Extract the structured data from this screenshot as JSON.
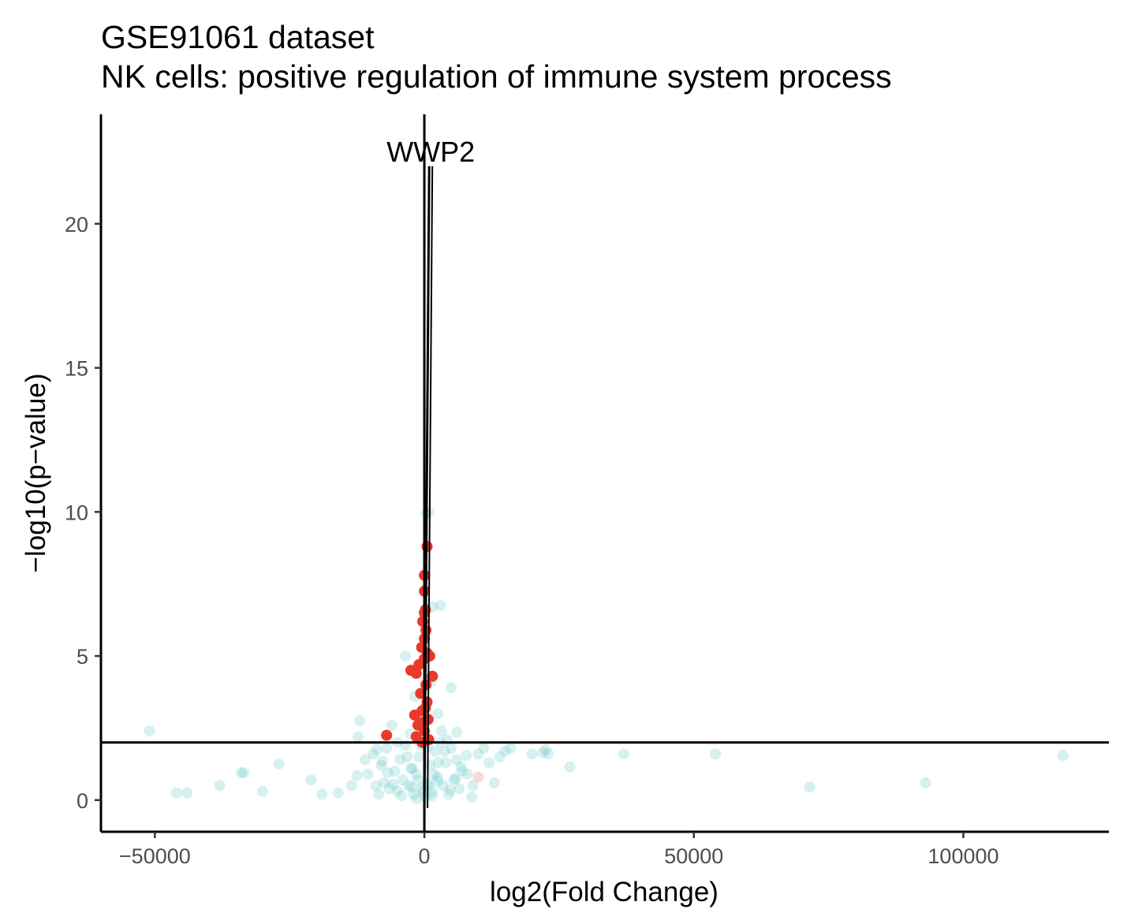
{
  "chart_data": {
    "type": "scatter",
    "title": "GSE91061 dataset",
    "subtitle": "NK cells: positive regulation of immune system process",
    "xlabel": "log2(Fold Change)",
    "ylabel": "−log10(p−value)",
    "xlim": [
      -60000,
      127000
    ],
    "ylim": [
      -1.1,
      23.8
    ],
    "x_ticks": [
      -50000,
      0,
      50000,
      100000
    ],
    "x_tick_labels": [
      "−50000",
      "0",
      "50000",
      "100000"
    ],
    "y_ticks": [
      0,
      5,
      10,
      15,
      20
    ],
    "y_tick_labels": [
      "0",
      "5",
      "10",
      "15",
      "20"
    ],
    "grid": false,
    "reference_lines": {
      "vertical_x": 0,
      "horizontal_y": 2
    },
    "colors": {
      "nonsignificant": "#5ec4c4",
      "significant": "#e8392a",
      "faded_red": "#f08080"
    },
    "annotation": {
      "label": "WWP2",
      "x": 900,
      "y": 22.0
    },
    "series": [
      {
        "role": "nonsignificant",
        "points": [
          [
            -51000,
            2.4
          ],
          [
            -46000,
            0.25
          ],
          [
            -44000,
            0.25
          ],
          [
            -38000,
            0.5
          ],
          [
            -34000,
            0.95
          ],
          [
            -33500,
            0.95
          ],
          [
            -27000,
            1.25
          ],
          [
            -30000,
            0.3
          ],
          [
            -21000,
            0.7
          ],
          [
            -19000,
            0.2
          ],
          [
            -16000,
            0.25
          ],
          [
            -13500,
            0.5
          ],
          [
            -12500,
            0.85
          ],
          [
            -12000,
            2.75
          ],
          [
            -12300,
            2.2
          ],
          [
            -11000,
            1.4
          ],
          [
            -10500,
            0.9
          ],
          [
            -9500,
            1.6
          ],
          [
            -9000,
            0.5
          ],
          [
            -8500,
            0.2
          ],
          [
            -8000,
            1.2
          ],
          [
            -7500,
            0.6
          ],
          [
            -7000,
            1.8
          ],
          [
            -6500,
            0.4
          ],
          [
            -6000,
            2.6
          ],
          [
            -5500,
            1.0
          ],
          [
            -5000,
            0.3
          ],
          [
            -4500,
            1.4
          ],
          [
            -4000,
            0.7
          ],
          [
            -3500,
            1.9
          ],
          [
            -3000,
            0.5
          ],
          [
            -2500,
            1.1
          ],
          [
            -2000,
            0.2
          ],
          [
            -1500,
            0.9
          ],
          [
            -1000,
            1.5
          ],
          [
            -500,
            0.4
          ],
          [
            500,
            0.6
          ],
          [
            1000,
            1.2
          ],
          [
            1500,
            0.3
          ],
          [
            2000,
            1.7
          ],
          [
            2500,
            0.8
          ],
          [
            3000,
            2.0
          ],
          [
            3500,
            0.5
          ],
          [
            4000,
            1.3
          ],
          [
            4500,
            0.2
          ],
          [
            5000,
            1.8
          ],
          [
            5500,
            0.7
          ],
          [
            6000,
            1.4
          ],
          [
            6500,
            0.4
          ],
          [
            7000,
            1.0
          ],
          [
            8000,
            0.9
          ],
          [
            9000,
            0.5
          ],
          [
            10000,
            1.6
          ],
          [
            11000,
            1.8
          ],
          [
            12000,
            1.3
          ],
          [
            13000,
            0.6
          ],
          [
            14000,
            1.5
          ],
          [
            15000,
            1.7
          ],
          [
            16000,
            1.8
          ],
          [
            20000,
            1.6
          ],
          [
            22000,
            1.65
          ],
          [
            22500,
            1.75
          ],
          [
            23000,
            1.6
          ],
          [
            27000,
            1.15
          ],
          [
            37000,
            1.6
          ],
          [
            54000,
            1.6
          ],
          [
            71500,
            0.45
          ],
          [
            93000,
            0.6
          ],
          [
            118500,
            1.55
          ],
          [
            300,
            9.95
          ],
          [
            800,
            10.0
          ],
          [
            1500,
            6.7
          ],
          [
            3000,
            6.75
          ],
          [
            -3500,
            5.0
          ],
          [
            1200,
            4.1
          ],
          [
            5000,
            3.9
          ],
          [
            -1800,
            3.6
          ],
          [
            2500,
            3.0
          ],
          [
            -800,
            2.8
          ],
          [
            3200,
            2.4
          ],
          [
            -2600,
            2.3
          ],
          [
            6000,
            2.35
          ],
          [
            -5000,
            2.0
          ],
          [
            4200,
            2.1
          ],
          [
            200,
            0.1
          ],
          [
            -200,
            0.3
          ],
          [
            700,
            0.5
          ],
          [
            -1200,
            0.7
          ],
          [
            1800,
            0.9
          ],
          [
            -2200,
            1.1
          ],
          [
            2600,
            1.3
          ],
          [
            -3200,
            1.5
          ],
          [
            3800,
            1.7
          ],
          [
            -4200,
            0.15
          ],
          [
            4800,
            0.35
          ],
          [
            -5800,
            0.55
          ],
          [
            5800,
            0.75
          ],
          [
            -6800,
            0.95
          ],
          [
            6800,
            1.15
          ],
          [
            -7800,
            1.35
          ],
          [
            7800,
            1.55
          ],
          [
            -8800,
            1.75
          ],
          [
            8800,
            0.1
          ],
          [
            -600,
            1.9
          ],
          [
            600,
            1.85
          ],
          [
            -1400,
            0.05
          ],
          [
            1400,
            0.15
          ],
          [
            -2400,
            0.45
          ],
          [
            2400,
            0.65
          ]
        ]
      },
      {
        "role": "significant",
        "points": [
          [
            500,
            8.8
          ],
          [
            0,
            7.8
          ],
          [
            0,
            7.25
          ],
          [
            200,
            6.6
          ],
          [
            0,
            6.5
          ],
          [
            -300,
            6.2
          ],
          [
            300,
            5.9
          ],
          [
            0,
            5.6
          ],
          [
            -500,
            5.3
          ],
          [
            500,
            5.1
          ],
          [
            0,
            4.9
          ],
          [
            -2500,
            4.5
          ],
          [
            -1500,
            4.4
          ],
          [
            1500,
            4.3
          ],
          [
            300,
            4.0
          ],
          [
            -700,
            3.7
          ],
          [
            500,
            3.4
          ],
          [
            -400,
            3.1
          ],
          [
            -1800,
            2.95
          ],
          [
            700,
            2.8
          ],
          [
            -1200,
            2.6
          ],
          [
            0,
            2.4
          ],
          [
            -7000,
            2.25
          ],
          [
            -1500,
            2.2
          ],
          [
            800,
            2.1
          ],
          [
            -400,
            2.0
          ],
          [
            1000,
            5.0
          ],
          [
            -1000,
            4.7
          ],
          [
            200,
            3.2
          ],
          [
            -300,
            2.7
          ]
        ]
      },
      {
        "role": "faded_red",
        "points": [
          [
            10000,
            0.8
          ]
        ]
      }
    ]
  }
}
